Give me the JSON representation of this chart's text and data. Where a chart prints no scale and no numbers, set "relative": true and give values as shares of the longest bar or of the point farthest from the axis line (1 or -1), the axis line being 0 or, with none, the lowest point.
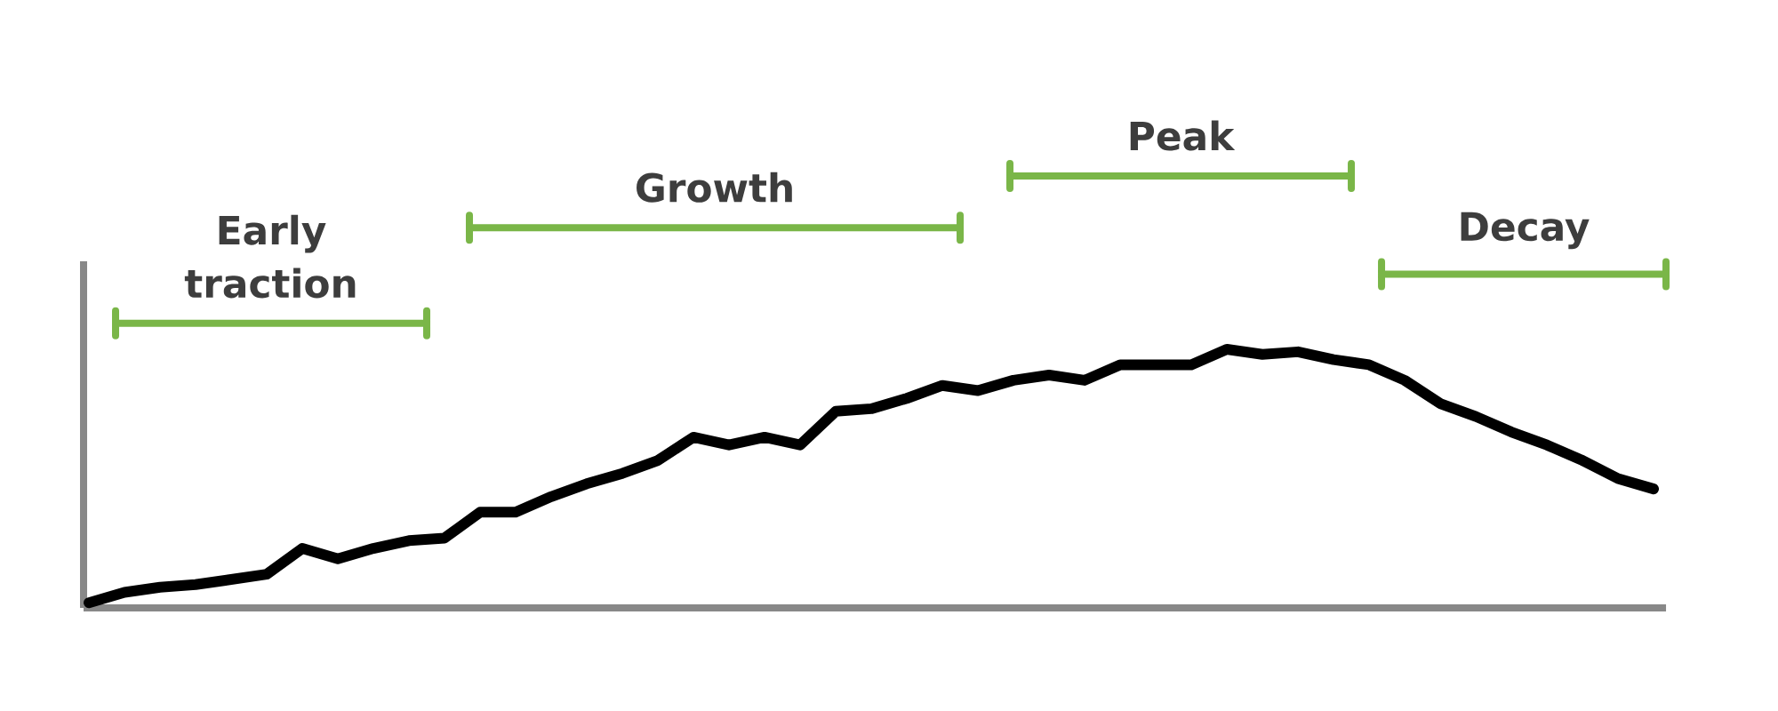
{
  "chart_data": {
    "type": "line",
    "relative": true,
    "categories": [
      null,
      null,
      null,
      null,
      null,
      null,
      null,
      null,
      null,
      null,
      null,
      null,
      null,
      null,
      null,
      null,
      null,
      null,
      null,
      null,
      null,
      null,
      null,
      null,
      null,
      null,
      null,
      null,
      null,
      null,
      null,
      null,
      null,
      null,
      null,
      null,
      null,
      null,
      null,
      null,
      null,
      null,
      null,
      null,
      null
    ],
    "series": [
      {
        "color": "#000000",
        "values": [
          0.02,
          0.06,
          0.08,
          0.09,
          0.11,
          0.13,
          0.23,
          0.19,
          0.23,
          0.26,
          0.27,
          0.37,
          0.37,
          0.43,
          0.48,
          0.52,
          0.57,
          0.66,
          0.63,
          0.66,
          0.63,
          0.76,
          0.77,
          0.81,
          0.86,
          0.84,
          0.88,
          0.9,
          0.88,
          0.94,
          0.94,
          0.94,
          1,
          0.98,
          0.99,
          0.96,
          0.94,
          0.88,
          0.79,
          0.74,
          0.68,
          0.63,
          0.57,
          0.5,
          0.46
        ]
      }
    ],
    "annotations": [
      "Early traction",
      "Growth",
      "Peak",
      "Decay"
    ]
  }
}
